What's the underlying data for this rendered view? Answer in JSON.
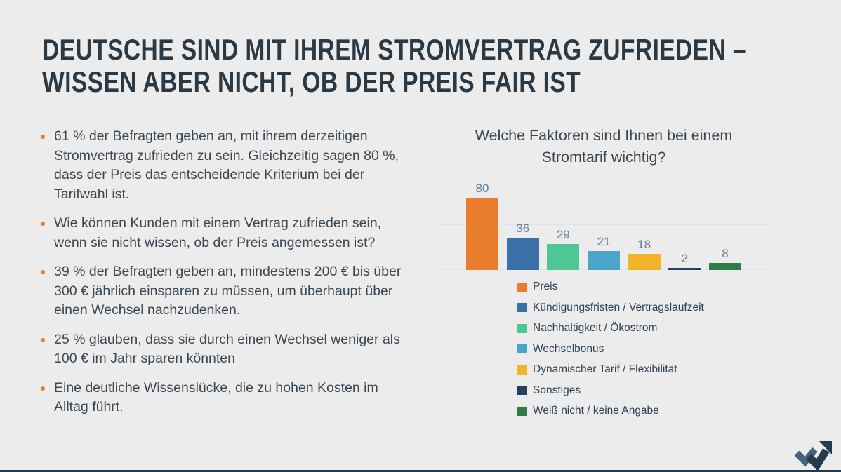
{
  "slide": {
    "title": {
      "line1": "DEUTSCHE SIND MIT IHREM STROMVERTRAG ZUFRIEDEN –",
      "line2": "WISSEN ABER NICHT, OB DER PREIS FAIR IST"
    },
    "bullets": [
      "61 % der Befragten geben an, mit ihrem derzeitigen Stromvertrag zufrieden zu sein. Gleichzeitig sagen 80 %, dass der Preis das entscheidende Kriterium bei der Tarifwahl ist.",
      "Wie können Kunden mit einem Vertrag zufrieden sein, wenn sie nicht wissen, ob der Preis angemessen ist?",
      "39 % der Befragten geben an, mindestens 200 € bis über 300 € jährlich einsparen zu müssen, um überhaupt über einen Wechsel nachzudenken.",
      "25 % glauben, dass sie durch einen Wechsel weniger als 100 € im Jahr sparen könnten",
      "Eine deutliche Wissenslücke, die zu hohen Kosten im Alltag führt."
    ]
  },
  "chart_data": {
    "type": "bar",
    "title": "Welche Faktoren sind Ihnen bei einem Stromtarif wichtig?",
    "categories": [
      "Preis",
      "Kündigungsfristen / Vertragslaufzeit",
      "Nachhaltigkeit / Ökostrom",
      "Wechselbonus",
      "Dynamischer Tarif / Flexibilität",
      "Sonstiges",
      "Weiß nicht / keine Angabe"
    ],
    "values": [
      80,
      36,
      29,
      21,
      18,
      2,
      8
    ],
    "bar_colors": [
      "#E87E2D",
      "#3A6FA8",
      "#4EC795",
      "#4BA5CB",
      "#F0B32A",
      "#24405F",
      "#2E7D49"
    ],
    "xlabel": "",
    "ylabel": "",
    "ylim": [
      0,
      100
    ],
    "gridlines": [
      0,
      50,
      100
    ],
    "grid": true,
    "value_labels": true,
    "legend_position": "bottom-left"
  },
  "colors": {
    "background": "#ECECEC",
    "title_text": "#2B3945",
    "body_text": "#3A4854",
    "bullet_marker": "#E87E2D",
    "gridline": "#DDE5F1",
    "value_label": "#5E7F9C",
    "legend_text": "#2E4255",
    "footer_bar": "#243A4F",
    "logo_dark": "#243A4F",
    "logo_light": "#47637C"
  }
}
